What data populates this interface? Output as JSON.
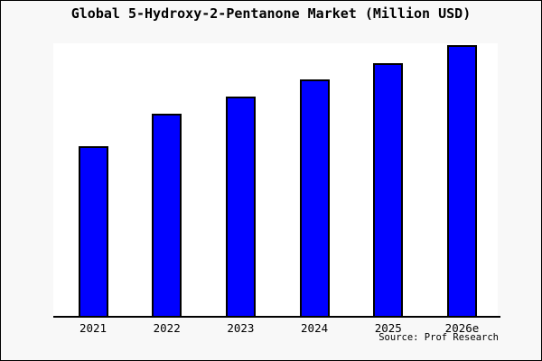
{
  "frame": {
    "background": "#f8f8f8",
    "border_color": "#000000"
  },
  "chart_data": {
    "type": "bar",
    "title": "Global 5-Hydroxy-2-Pentanone Market (Million USD)",
    "categories": [
      "2021",
      "2022",
      "2023",
      "2024",
      "2025",
      "2026e"
    ],
    "values": [
      63,
      75,
      81,
      87.5,
      93.5,
      100
    ],
    "value_note": "no y-axis ticks or data labels are shown; values are relative bar heights with 2026e = 100",
    "xlabel": "",
    "ylabel": "",
    "ylim": [
      0,
      100
    ],
    "grid": false,
    "legend": false,
    "bar_color": "#0000ff",
    "bar_border_color": "#000000",
    "plot_background": "#ffffff",
    "axis_color": "#000000",
    "source_label": "Source: Prof Research"
  }
}
